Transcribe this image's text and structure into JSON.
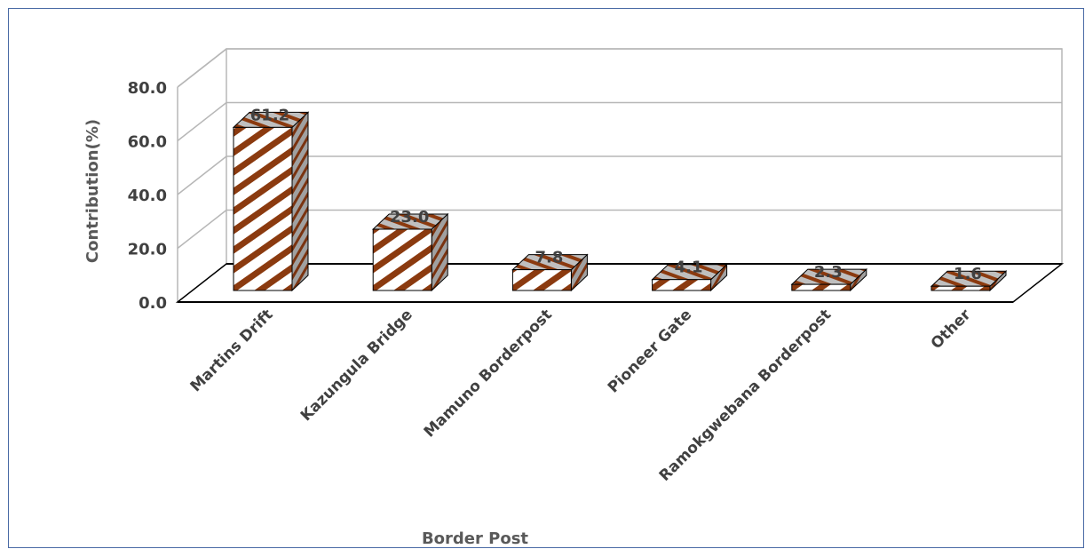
{
  "chart_data": {
    "type": "bar",
    "style": "3d-column",
    "categories": [
      "Martins Drift",
      "Kazungula Bridge",
      "Mamuno Borderpost",
      "Pioneer Gate",
      "Ramokgwebana Borderpost",
      "Other"
    ],
    "values": [
      61.2,
      23.0,
      7.8,
      4.1,
      2.3,
      1.6
    ],
    "data_labels": [
      "61.2",
      "23.0",
      "7.8",
      "4.1",
      "2.3",
      "1.6"
    ],
    "xlabel": "Border Post",
    "ylabel": "Contribution(%)",
    "ylim": [
      0,
      80
    ],
    "yticks": [
      "0.0",
      "20.0",
      "40.0",
      "60.0",
      "80.0"
    ],
    "grid": true,
    "legend": "none",
    "colors": {
      "stripe": "#8b3a0f",
      "front": "#ffffff",
      "gridline": "#b7b7b7",
      "axis": "#000000",
      "text": "#404040"
    }
  }
}
